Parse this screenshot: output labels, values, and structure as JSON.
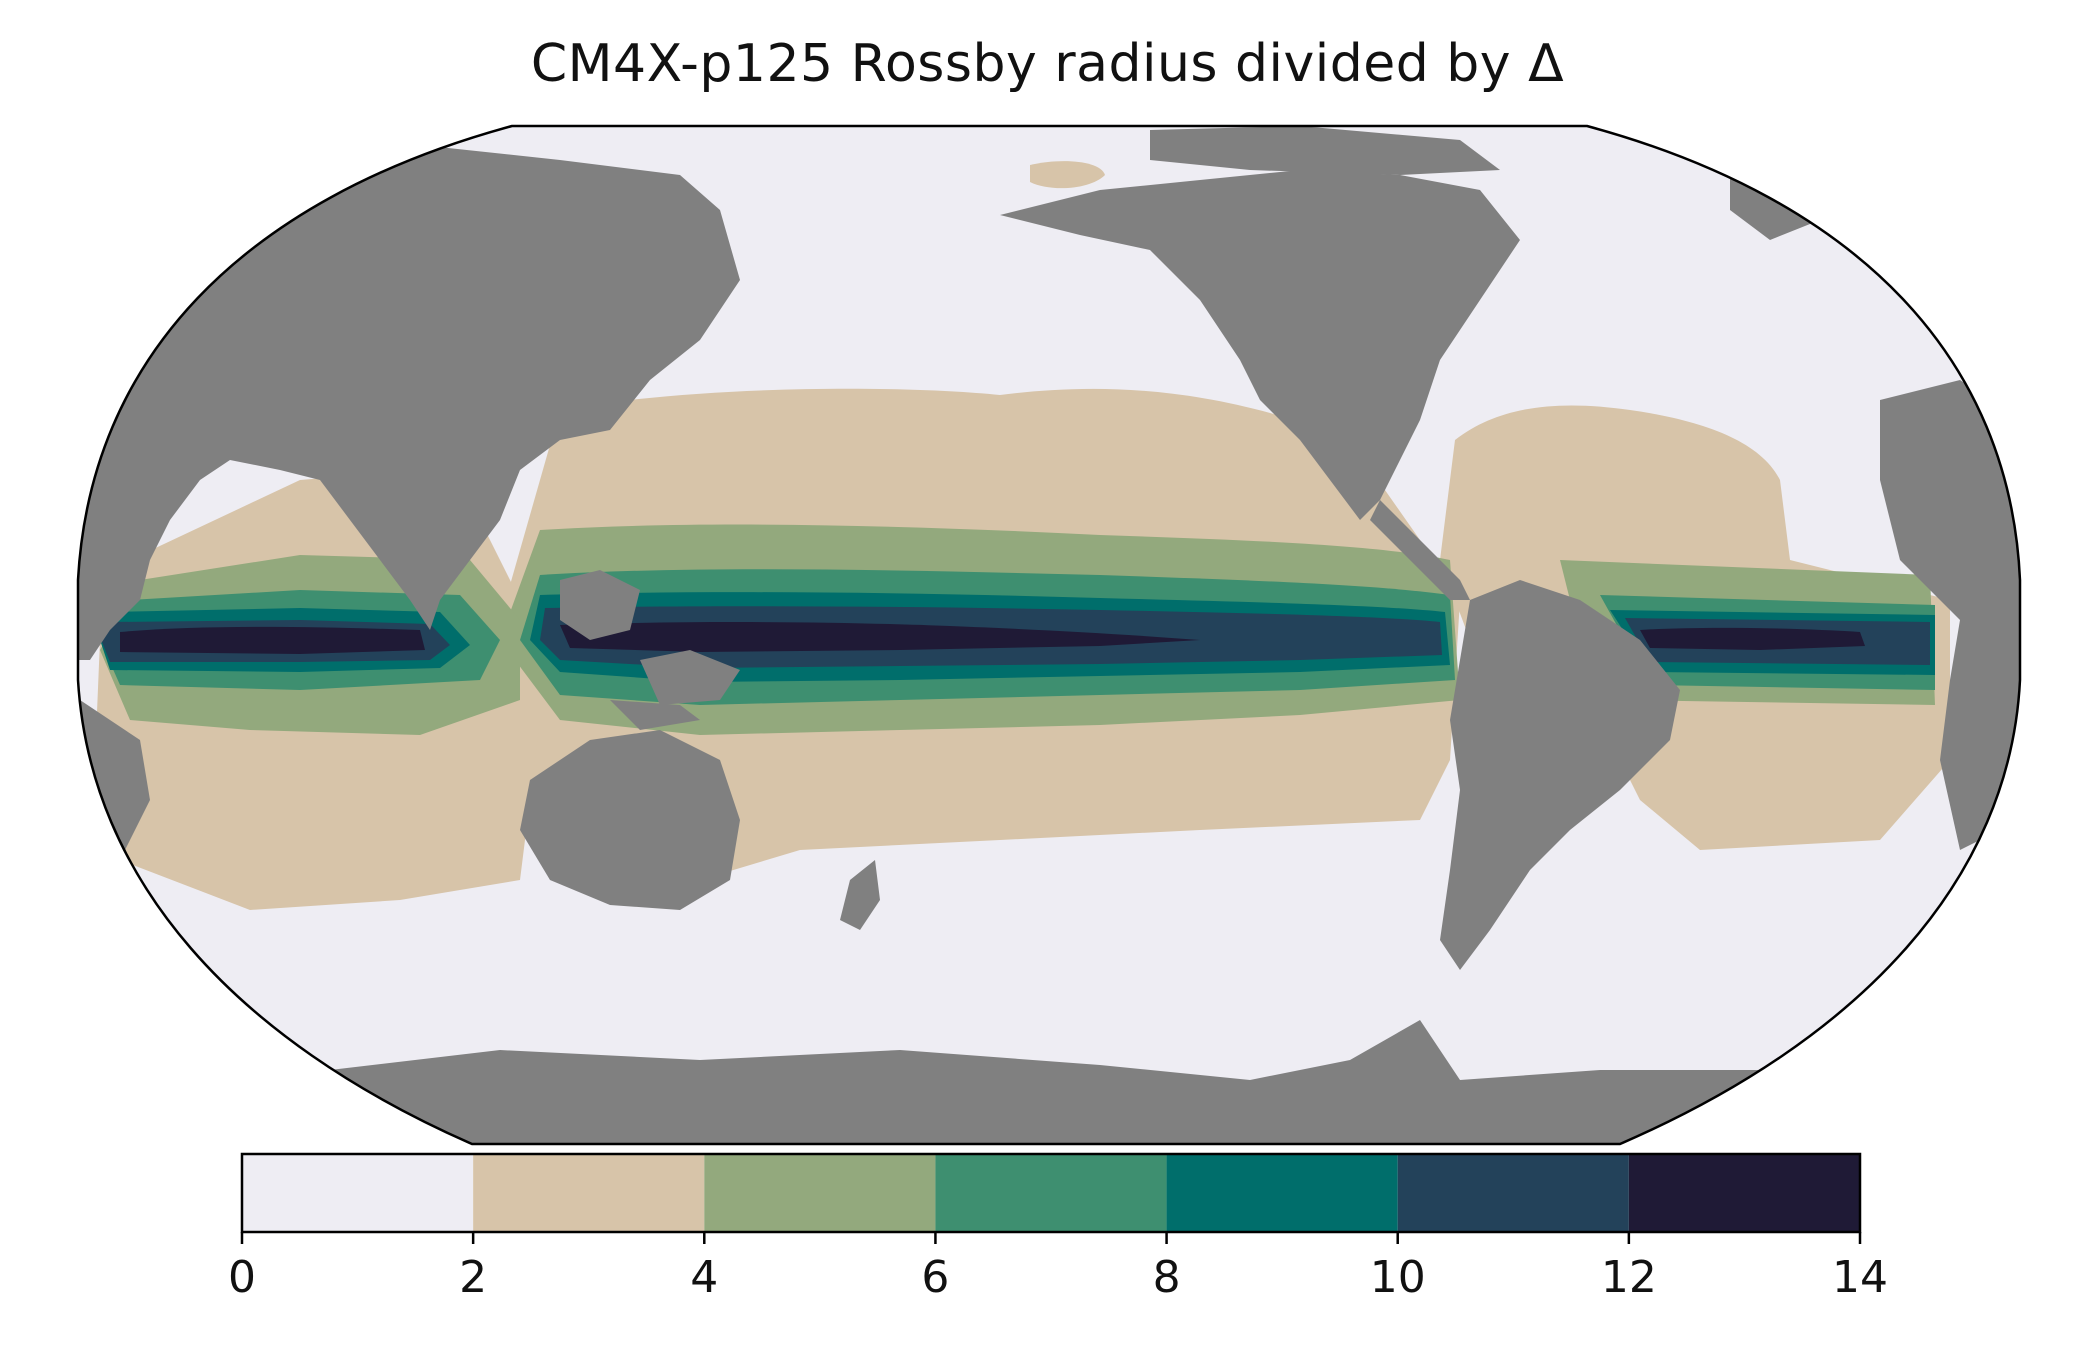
{
  "title": "CM4X-p125 Rossby radius divided by Δ",
  "map": {
    "projection": "Robinson",
    "central_longitude": 180,
    "land_color": "#808080",
    "ocean_base_color": "#eeedf3"
  },
  "colorbar": {
    "orientation": "horizontal",
    "placement": "bottom",
    "bounds": [
      0,
      2,
      4,
      6,
      8,
      10,
      12,
      14
    ],
    "tick_labels": [
      "0",
      "2",
      "4",
      "6",
      "8",
      "10",
      "12",
      "14"
    ],
    "colors": [
      "#eeedf3",
      "#d7c4a9",
      "#93a97d",
      "#3e8f70",
      "#006e6b",
      "#23425a",
      "#1f1a36"
    ]
  }
}
